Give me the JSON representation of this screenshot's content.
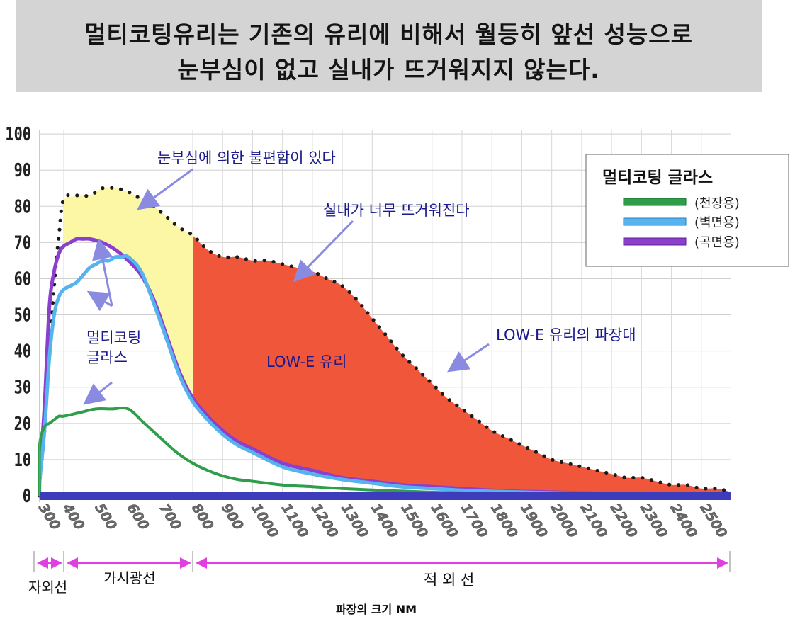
{
  "banner": {
    "line1": "멀티코팅유리는 기존의  유리에 비해서 월등히 앞선 성능으로",
    "line2": "눈부심이 없고 실내가 뜨거워지지 않는다."
  },
  "chart_data": {
    "type": "area",
    "xlabel": "파장의 크기 NM",
    "x_ticks": [
      "300",
      "400",
      "500",
      "600",
      "700",
      "800",
      "900",
      "1000",
      "1100",
      "1200",
      "1300",
      "1400",
      "1500",
      "1600",
      "1700",
      "1800",
      "1900",
      "2000",
      "2100",
      "2200",
      "2300",
      "2400",
      "2500"
    ],
    "y_ticks": [
      0,
      10,
      20,
      30,
      40,
      50,
      60,
      70,
      80,
      90,
      100
    ],
    "ylim": [
      0,
      100
    ],
    "grid": true,
    "legend": {
      "title": "멀티코팅 글라스",
      "position": "top-right",
      "entries": [
        {
          "label": "(천장용)",
          "color": "#2e9e4a"
        },
        {
          "label": "(벽면용)",
          "color": "#55b4ee"
        },
        {
          "label": "(곡면용)",
          "color": "#8b3fcf"
        }
      ]
    },
    "regions": [
      {
        "label": "자외선",
        "from": "300",
        "to": "400"
      },
      {
        "label": "가시광선",
        "from": "400",
        "to": "800"
      },
      {
        "label": "적 외 선",
        "from": "800",
        "to": "2500"
      }
    ],
    "annotations": [
      "눈부심에 의한 불편함이 있다",
      "실내가 너무 뜨거워진다",
      "멀티코팅",
      "글라스",
      "LOW-E 유리",
      "LOW-E 유리의 파장대"
    ],
    "colors": {
      "visible_fill": "#fbf7a4",
      "lowe_fill": "#f0563a",
      "green": "#2e9e4a",
      "blue": "#55b4ee",
      "purple": "#8b3fcf",
      "annotation_text": "#1a1a8c",
      "region_arrow": "#e040e0"
    },
    "series": [
      {
        "key": "lowe",
        "x": [
          280,
          300,
          320,
          340,
          360,
          380,
          400,
          440,
          480,
          520,
          560,
          600,
          640,
          680,
          720,
          760,
          800,
          850,
          900,
          950,
          1000,
          1050,
          1100,
          1150,
          1200,
          1250,
          1300,
          1350,
          1400,
          1450,
          1500,
          1550,
          1600,
          1650,
          1700,
          1750,
          1800,
          1850,
          1900,
          1950,
          2000,
          2050,
          2100,
          2150,
          2200,
          2250,
          2300,
          2350,
          2400,
          2450,
          2500,
          2550,
          2600
        ],
        "y": [
          0,
          4,
          18,
          40,
          58,
          72,
          82,
          83,
          83,
          85,
          85,
          84,
          82,
          80,
          77,
          74,
          72,
          68,
          66,
          66,
          65,
          65,
          64,
          63,
          62,
          60,
          58,
          54,
          49,
          44,
          39,
          35,
          31,
          27,
          24,
          21,
          18,
          16,
          14,
          12,
          10,
          9,
          8,
          7,
          6,
          5,
          5,
          4,
          3,
          3,
          2,
          2,
          1
        ]
      },
      {
        "key": "purple",
        "x": [
          280,
          300,
          320,
          340,
          360,
          380,
          400,
          420,
          440,
          460,
          480,
          520,
          560,
          600,
          640,
          680,
          720,
          760,
          800,
          850,
          900,
          950,
          1000,
          1100,
          1200,
          1300,
          1400,
          1500,
          1600,
          1700,
          1800,
          1900,
          2000,
          2100,
          2200,
          2300,
          2400,
          2500,
          2600
        ],
        "y": [
          0,
          5,
          25,
          52,
          62,
          67,
          69,
          70,
          71,
          71,
          71,
          70,
          68,
          65,
          61,
          54,
          44,
          34,
          27,
          22,
          18,
          15,
          13,
          9,
          7,
          5,
          4,
          3,
          2.5,
          2,
          1.5,
          1.2,
          1,
          0.8,
          0.6,
          0.5,
          0.4,
          0.3,
          0.2
        ]
      },
      {
        "key": "blue",
        "x": [
          280,
          300,
          320,
          340,
          360,
          380,
          400,
          420,
          440,
          460,
          480,
          500,
          520,
          540,
          560,
          580,
          600,
          640,
          680,
          720,
          760,
          800,
          850,
          900,
          950,
          1000,
          1100,
          1200,
          1300,
          1400,
          1500,
          1600,
          1700,
          1800,
          1900,
          2000,
          2100,
          2200,
          2300,
          2400,
          2500,
          2600
        ],
        "y": [
          0,
          4,
          18,
          38,
          50,
          55,
          57,
          58,
          59,
          61,
          63,
          64,
          65,
          65,
          66,
          66,
          66,
          62,
          53,
          43,
          33,
          26,
          21,
          17,
          14,
          12,
          8,
          6,
          4.5,
          3.5,
          2.5,
          2,
          1.5,
          1.2,
          1,
          0.8,
          0.7,
          0.6,
          0.5,
          0.4,
          0.3,
          0.2
        ]
      },
      {
        "key": "green",
        "x": [
          280,
          300,
          320,
          340,
          360,
          380,
          400,
          450,
          500,
          550,
          600,
          650,
          700,
          750,
          800,
          850,
          900,
          950,
          1000,
          1100,
          1200,
          1300,
          1400,
          1500,
          1600,
          1700,
          1800,
          1900,
          2000,
          2100,
          2200,
          2300,
          2400,
          2500,
          2600
        ],
        "y": [
          0,
          14,
          19,
          20,
          21,
          22,
          22,
          23,
          24,
          24,
          24,
          20,
          16,
          12,
          9,
          7,
          5.5,
          4.5,
          4,
          3,
          2.5,
          2,
          1.6,
          1.3,
          1,
          0.8,
          0.6,
          0.5,
          0.4,
          0.3,
          0.3,
          0.2,
          0.2,
          0.1,
          0.1
        ]
      }
    ]
  }
}
